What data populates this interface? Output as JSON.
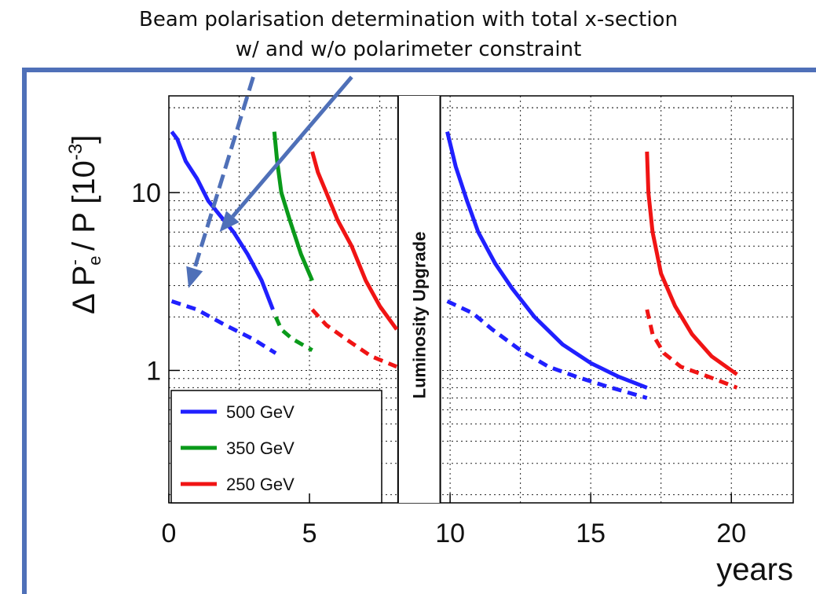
{
  "header": {
    "line1": "Beam polarisation determination with total x-section",
    "line2": "w/ and w/o polarimeter constraint"
  },
  "colors": {
    "frame": "#4f70b8",
    "arrow": "#4f70b8",
    "s500": "#2020ff",
    "s350": "#0a9a1a",
    "s250": "#f01414"
  },
  "chart_data": {
    "type": "line",
    "title": "",
    "xlabel": "years",
    "ylabel": "Δ P_e⁻ / P [10⁻³]",
    "ylabel_parts": {
      "delta": "Δ P",
      "sup": "-",
      "sub": "e",
      "rest": " / P [10",
      "exp": "-3",
      "close": "]"
    },
    "xlim": [
      0,
      22.2
    ],
    "ylim": [
      0.18,
      35
    ],
    "yscale": "log",
    "grid": true,
    "x_ticks": [
      {
        "v": 0,
        "label": "0"
      },
      {
        "v": 5,
        "label": "5"
      },
      {
        "v": 10,
        "label": "10"
      },
      {
        "v": 15,
        "label": "15"
      },
      {
        "v": 20,
        "label": "20"
      }
    ],
    "y_ticks": [
      {
        "v": 1,
        "label": "1"
      },
      {
        "v": 10,
        "label": "10"
      }
    ],
    "band": {
      "x0": 8.15,
      "x1": 9.65,
      "label": "Luminosity Upgrade"
    },
    "legend": {
      "position": "bottom-left",
      "entries": [
        {
          "label": "500 GeV",
          "color": "#2020ff"
        },
        {
          "label": "350 GeV",
          "color": "#0a9a1a"
        },
        {
          "label": "250 GeV",
          "color": "#f01414"
        }
      ]
    },
    "series": [
      {
        "color": "#2020ff",
        "style": "solid",
        "points": [
          [
            0.1,
            22
          ],
          [
            0.3,
            20
          ],
          [
            0.6,
            15
          ],
          [
            1.0,
            12
          ],
          [
            1.4,
            9
          ],
          [
            1.8,
            7.5
          ],
          [
            2.3,
            6
          ],
          [
            2.8,
            4.5
          ],
          [
            3.3,
            3.2
          ],
          [
            3.7,
            2.2
          ]
        ]
      },
      {
        "color": "#2020ff",
        "style": "dashed",
        "points": [
          [
            0.1,
            2.45
          ],
          [
            1.0,
            2.2
          ],
          [
            2.0,
            1.8
          ],
          [
            3.0,
            1.5
          ],
          [
            3.8,
            1.25
          ]
        ]
      },
      {
        "color": "#0a9a1a",
        "style": "solid",
        "points": [
          [
            3.75,
            22
          ],
          [
            3.85,
            15
          ],
          [
            4.0,
            10
          ],
          [
            4.3,
            7
          ],
          [
            4.7,
            4.5
          ],
          [
            5.1,
            3.2
          ]
        ]
      },
      {
        "color": "#0a9a1a",
        "style": "dashed",
        "points": [
          [
            3.8,
            2.0
          ],
          [
            4.0,
            1.7
          ],
          [
            4.4,
            1.5
          ],
          [
            5.1,
            1.3
          ]
        ]
      },
      {
        "color": "#f01414",
        "style": "solid",
        "points": [
          [
            5.1,
            17
          ],
          [
            5.3,
            13
          ],
          [
            5.6,
            10
          ],
          [
            6.0,
            7
          ],
          [
            6.5,
            5
          ],
          [
            7.0,
            3.2
          ],
          [
            7.5,
            2.3
          ],
          [
            8.1,
            1.7
          ]
        ]
      },
      {
        "color": "#f01414",
        "style": "dashed",
        "points": [
          [
            5.1,
            2.2
          ],
          [
            5.6,
            1.8
          ],
          [
            6.3,
            1.5
          ],
          [
            7.2,
            1.2
          ],
          [
            8.1,
            1.05
          ]
        ]
      },
      {
        "color": "#2020ff",
        "style": "solid",
        "points": [
          [
            9.9,
            22
          ],
          [
            10.2,
            14
          ],
          [
            10.6,
            9
          ],
          [
            11.0,
            6
          ],
          [
            11.6,
            4
          ],
          [
            12.2,
            2.9
          ],
          [
            13.0,
            2.0
          ],
          [
            14.0,
            1.4
          ],
          [
            15.0,
            1.1
          ],
          [
            16.0,
            0.92
          ],
          [
            17.0,
            0.8
          ]
        ]
      },
      {
        "color": "#2020ff",
        "style": "dashed",
        "points": [
          [
            9.9,
            2.45
          ],
          [
            10.8,
            2.1
          ],
          [
            11.5,
            1.7
          ],
          [
            12.5,
            1.3
          ],
          [
            13.5,
            1.05
          ],
          [
            14.5,
            0.92
          ],
          [
            15.5,
            0.82
          ],
          [
            17.0,
            0.7
          ]
        ]
      },
      {
        "color": "#f01414",
        "style": "solid",
        "points": [
          [
            17.0,
            17
          ],
          [
            17.05,
            10
          ],
          [
            17.2,
            6
          ],
          [
            17.5,
            3.5
          ],
          [
            18.0,
            2.3
          ],
          [
            18.6,
            1.6
          ],
          [
            19.3,
            1.2
          ],
          [
            20.2,
            0.95
          ]
        ]
      },
      {
        "color": "#f01414",
        "style": "dashed",
        "points": [
          [
            17.0,
            2.2
          ],
          [
            17.2,
            1.6
          ],
          [
            17.6,
            1.25
          ],
          [
            18.2,
            1.05
          ],
          [
            19.2,
            0.92
          ],
          [
            20.2,
            0.8
          ]
        ]
      }
    ],
    "annotation_arrows": [
      {
        "style": "dashed",
        "from": [
          3.0,
          45
        ],
        "to": [
          0.7,
          2.9
        ]
      },
      {
        "style": "solid",
        "from": [
          6.5,
          60
        ],
        "to": [
          1.8,
          6.0
        ]
      }
    ]
  }
}
